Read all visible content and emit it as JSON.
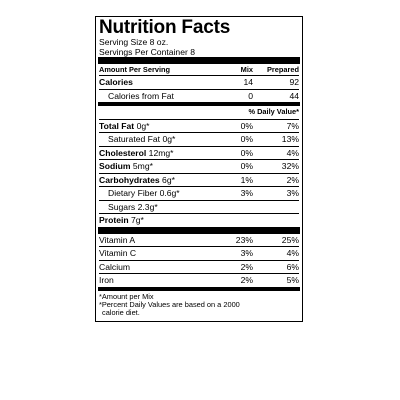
{
  "label": {
    "title": "Nutrition Facts",
    "serving_size": "Serving Size 8 oz.",
    "servings_per_container": "Servings Per Container 8",
    "header": {
      "col0": "Amount Per Serving",
      "col1": "Mix",
      "col2": "Prepared"
    },
    "calories": {
      "label": "Calories",
      "mix": "14",
      "prepared": "92"
    },
    "calories_from_fat": {
      "label": "Calories from Fat",
      "mix": "0",
      "prepared": "44"
    },
    "dv_header": "% Daily Value*",
    "nutrients": [
      {
        "name": "Total Fat",
        "amount": "0g*",
        "mix": "0%",
        "prepared": "7%"
      },
      {
        "name": "Saturated Fat 0g*",
        "mix": "0%",
        "prepared": "13%"
      },
      {
        "name": "Cholesterol",
        "amount": "12mg*",
        "mix": "0%",
        "prepared": "4%"
      },
      {
        "name": "Sodium",
        "amount": "5mg*",
        "mix": "0%",
        "prepared": "32%"
      },
      {
        "name": "Carbohydrates",
        "amount": "6g*",
        "mix": "1%",
        "prepared": "2%"
      },
      {
        "name": "Dietary Fiber 0.6g*",
        "mix": "3%",
        "prepared": "3%"
      },
      {
        "name": "Sugars 2.3g*"
      }
    ],
    "protein": {
      "name": "Protein",
      "amount": "7g*"
    },
    "vitamins": [
      {
        "name": "Vitamin A",
        "mix": "23%",
        "prepared": "25%"
      },
      {
        "name": "Vitamin C",
        "mix": "3%",
        "prepared": "4%"
      },
      {
        "name": "Calcium",
        "mix": "2%",
        "prepared": "6%"
      },
      {
        "name": "Iron",
        "mix": "2%",
        "prepared": "5%"
      }
    ],
    "footnotes": {
      "line1": "*Amount per Mix",
      "line2": "*Percent Daily Values are based on a 2000",
      "line3": "calorie diet."
    }
  }
}
